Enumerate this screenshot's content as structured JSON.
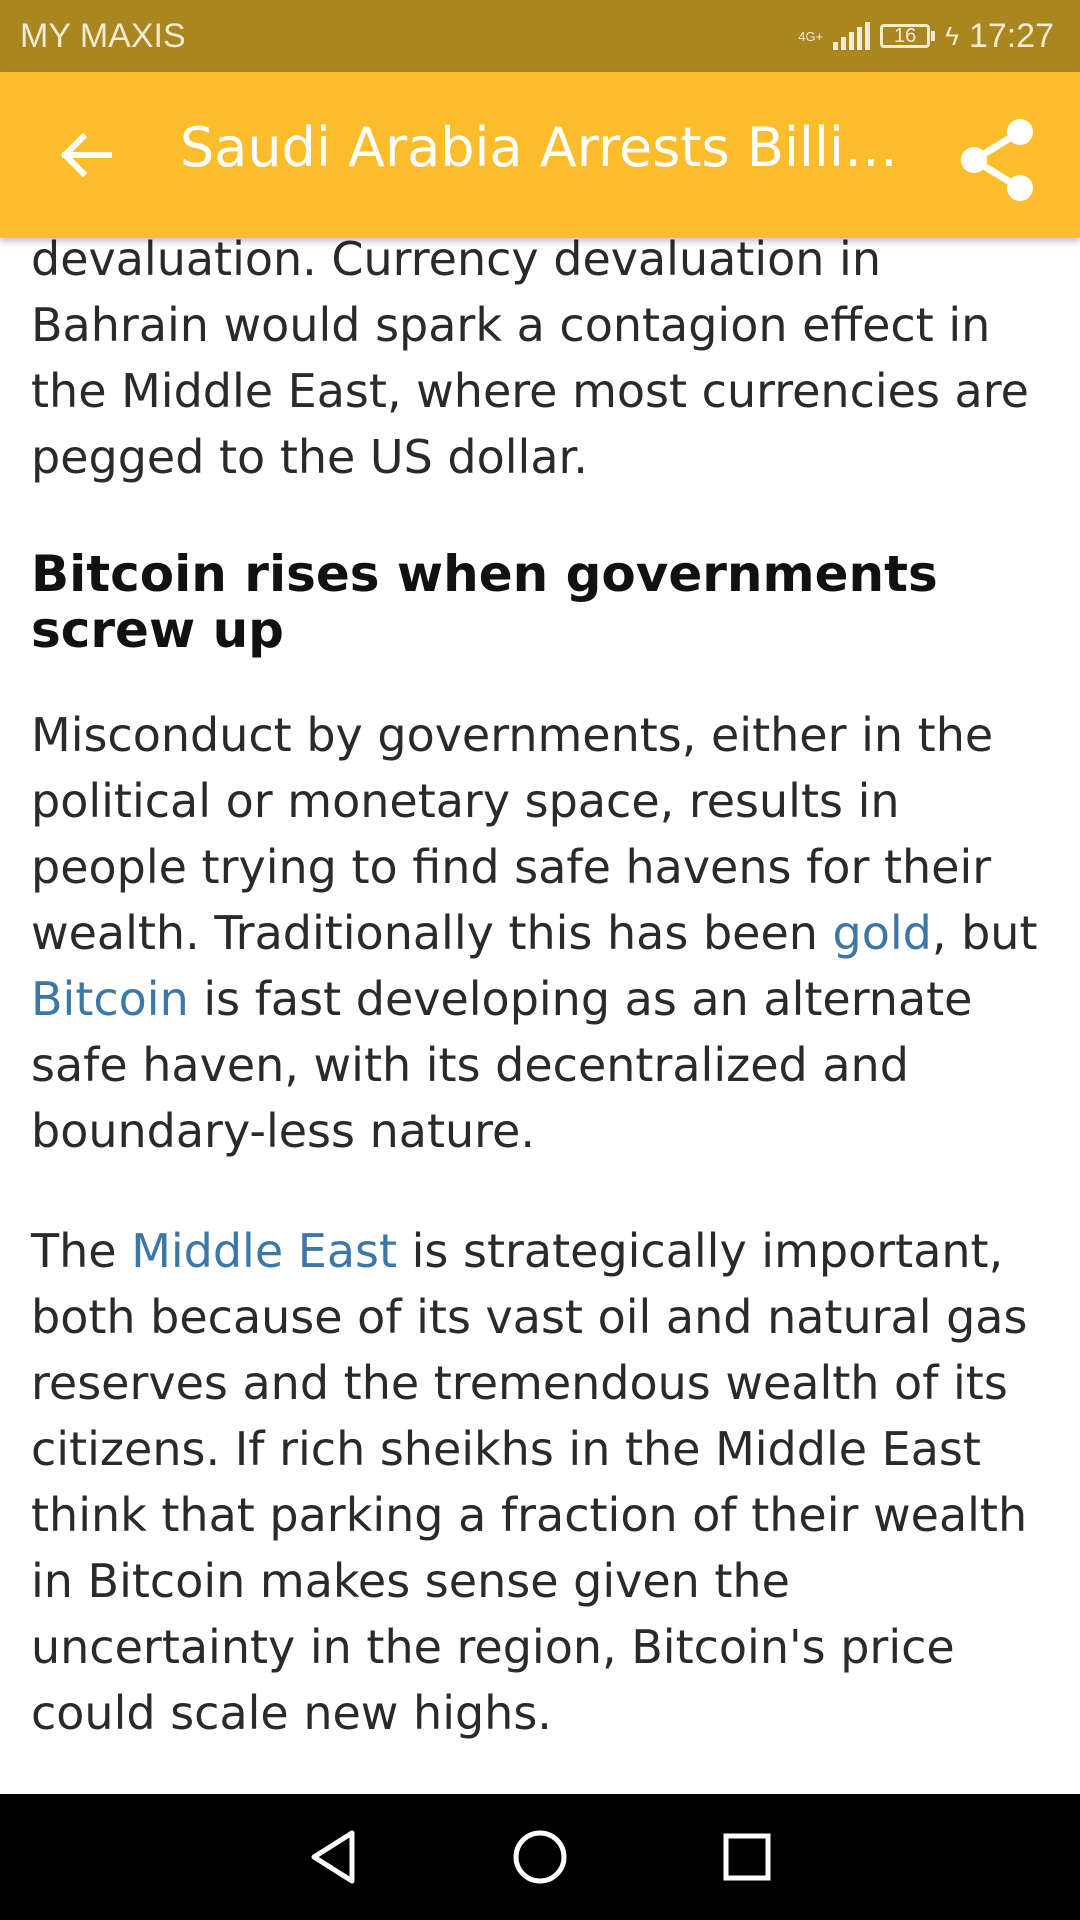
{
  "status_bar": {
    "carrier": "MY MAXIS",
    "network": "4G+",
    "battery": "16",
    "time": "17:27"
  },
  "app_bar": {
    "title": "Saudi Arabia Arrests Billi…",
    "back_icon": "arrow-left-icon",
    "share_icon": "share-icon",
    "color": "#fbbd2b"
  },
  "article": {
    "p1": "devaluation. Currency devaluation in Bahrain would spark a contagion effect in the Middle East, where most currencies are pegged to the US dollar.",
    "heading": "Bitcoin rises when governments screw up",
    "p2_a": "Misconduct by governments, either in the political or monetary space, results in people trying to find safe havens for their wealth. Traditionally this has been ",
    "p2_link1": "gold",
    "p2_b": ", but ",
    "p2_link2": "Bitcoin",
    "p2_c": " is fast developing as an alternate safe haven, with its decentralized and boundary-less nature.",
    "p3_a": "The ",
    "p3_link1": "Middle East",
    "p3_b": " is strategically important, both because of its vast oil and natural gas reserves and the tremendous wealth of its citizens. If rich sheikhs in the Middle East think that parking a fraction of their wealth in Bitcoin makes sense given the uncertainty in the region, Bitcoin's price could scale new highs.",
    "link_color": "#3b78a8"
  },
  "nav_bar": {
    "back_icon": "triangle-back-icon",
    "home_icon": "circle-home-icon",
    "recents_icon": "square-recents-icon"
  }
}
